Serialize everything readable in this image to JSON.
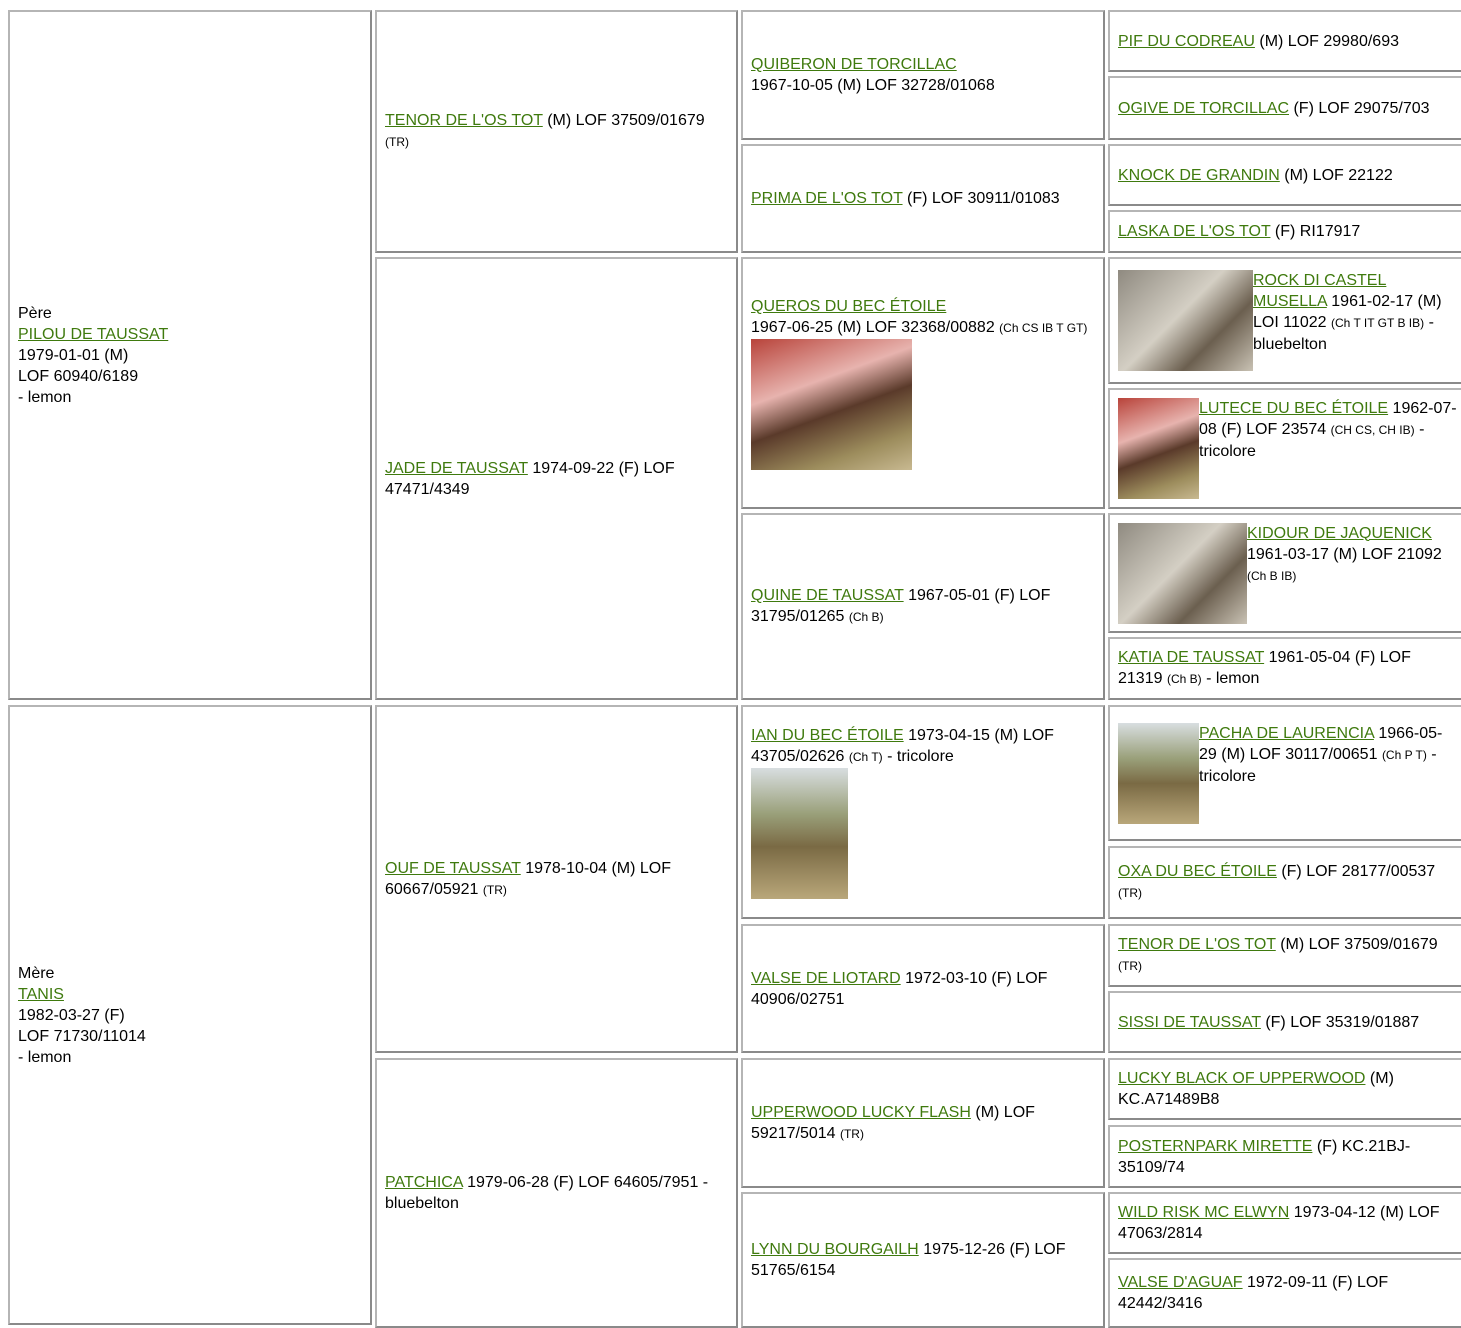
{
  "cells": [
    {
      "label": "Père",
      "name": "PILOU DE TAUSSAT",
      "lines": [
        "1979-01-01 (M)",
        "LOF 60940/6189",
        "- lemon"
      ]
    },
    {
      "label": "Mère",
      "name": "TANIS",
      "lines": [
        "1982-03-27 (F)",
        "LOF 71730/11014",
        "- lemon"
      ]
    },
    {
      "name": "TENOR DE L'OS TOT",
      "text": "(M) LOF 37509/01679",
      "note": "(TR)"
    },
    {
      "name": "JADE DE TAUSSAT",
      "text": "1974-09-22 (F) LOF 47471/4349"
    },
    {
      "name": "OUF DE TAUSSAT",
      "text": "1978-10-04 (M) LOF 60667/05921",
      "note": "(TR)"
    },
    {
      "name": "PATCHICA",
      "text": "1979-06-28 (F) LOF 64605/7951 - bluebelton"
    },
    {
      "name": "QUIBERON DE TORCILLAC",
      "text": "1967-10-05 (M) LOF 32728/01068"
    },
    {
      "name": "PRIMA DE L'OS TOT",
      "text": "(F) LOF 30911/01083"
    },
    {
      "name": "QUEROS DU BEC ÉTOILE",
      "text": "1967-06-25 (M) LOF 32368/00882",
      "note": "(Ch CS IB T GT)"
    },
    {
      "name": "QUINE DE TAUSSAT",
      "text": "1967-05-01 (F) LOF 31795/01265",
      "note": "(Ch B)"
    },
    {
      "name": "IAN DU BEC ÉTOILE",
      "text": "1973-04-15 (M) LOF 43705/02626",
      "note": "(Ch T)",
      "tail": "- tricolore"
    },
    {
      "name": "VALSE DE LIOTARD",
      "text": "1972-03-10 (F) LOF 40906/02751"
    },
    {
      "name": "UPPERWOOD LUCKY FLASH",
      "text": "(M) LOF 59217/5014",
      "note": "(TR)"
    },
    {
      "name": "LYNN DU BOURGAILH",
      "text": "1975-12-26 (F) LOF 51765/6154"
    },
    {
      "name": "PIF DU CODREAU",
      "text": "(M) LOF 29980/693"
    },
    {
      "name": "OGIVE DE TORCILLAC",
      "text": "(F) LOF 29075/703"
    },
    {
      "name": "KNOCK DE GRANDIN",
      "text": "(M) LOF 22122"
    },
    {
      "name": "LASKA DE L'OS TOT",
      "text": "(F) RI17917"
    },
    {
      "name": "ROCK DI CASTEL MUSELLA",
      "text": "1961-02-17 (M) LOI 11022",
      "note": "(Ch T IT GT B IB)",
      "tail": "- bluebelton"
    },
    {
      "name": "LUTECE DU BEC ÉTOILE",
      "text": "1962-07-08 (F) LOF 23574",
      "note": "(CH CS, CH IB)",
      "tail": "- tricolore"
    },
    {
      "name": "KIDOUR DE JAQUENICK",
      "text": "1961-03-17 (M) LOF 21092",
      "note": "(Ch B IB)"
    },
    {
      "name": "KATIA DE TAUSSAT",
      "text": "1961-05-04 (F) LOF 21319",
      "note": "(Ch B)",
      "tail": "- lemon"
    },
    {
      "name": "PACHA DE LAURENCIA",
      "text": "1966-05-29 (M) LOF 30117/00651",
      "note": "(Ch P T)",
      "tail": "- tricolore"
    },
    {
      "name": "OXA DU BEC ÉTOILE",
      "text": "(F) LOF 28177/00537",
      "note": "(TR)"
    },
    {
      "name": "TENOR DE L'OS TOT",
      "text": "(M) LOF 37509/01679",
      "note": "(TR)"
    },
    {
      "name": "SISSI DE TAUSSAT",
      "text": "(F) LOF 35319/01887"
    },
    {
      "name": "LUCKY BLACK OF UPPERWOOD",
      "text": "(M) KC.A71489B8"
    },
    {
      "name": "POSTERNPARK MIRETTE",
      "text": "(F) KC.21BJ-35109/74"
    },
    {
      "name": "WILD RISK MC ELWYN",
      "text": "1973-04-12 (M) LOF 47063/2814"
    },
    {
      "name": "VALSE D'AGUAF",
      "text": "1972-09-11 (F) LOF 42442/3416"
    }
  ]
}
